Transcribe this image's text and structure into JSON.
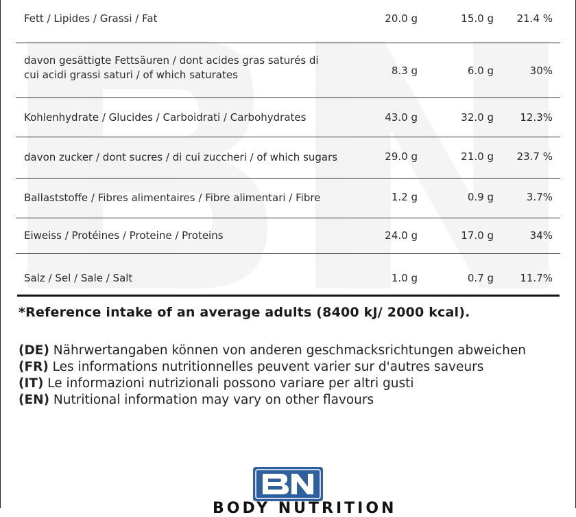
{
  "nutrition_table": {
    "rows": [
      {
        "label": "Fett / Lipides / Grassi / Fat",
        "per100": "20.0 g",
        "perServing": "15.0 g",
        "ri": "21.4 %"
      },
      {
        "label": "davon gesättigte Fettsäuren / dont acides gras saturés di cui acidi grassi saturi / of which saturates",
        "per100": "8.3 g",
        "perServing": "6.0 g",
        "ri": "30%"
      },
      {
        "label": "Kohlenhydrate / Glucides / Carboidrati / Carbohydrates",
        "per100": "43.0 g",
        "perServing": "32.0 g",
        "ri": "12.3%"
      },
      {
        "label": "davon zucker / dont sucres / di cui zuccheri / of which sugars",
        "per100": "29.0 g",
        "perServing": "21.0 g",
        "ri": "23.7 %"
      },
      {
        "label": "Ballaststoffe / Fibres alimentaires / Fibre alimentari / Fibre",
        "per100": "1.2 g",
        "perServing": "0.9 g",
        "ri": "3.7%"
      },
      {
        "label": "Eiweiss / Protéines / Proteine / Proteins",
        "per100": "24.0 g",
        "perServing": "17.0 g",
        "ri": "34%"
      },
      {
        "label": "Salz / Sel / Sale / Salt",
        "per100": "1.0 g",
        "perServing": "0.7 g",
        "ri": "11.7%"
      }
    ]
  },
  "reference_note": "*Reference intake of an average adults (8400 kJ/ 2000 kcal).",
  "notes": [
    {
      "code": "(DE)",
      "text": " Nährwertangaben können von anderen geschmacksrichtungen abweichen"
    },
    {
      "code": "(FR)",
      "text": " Les informations nutritionnelles peuvent varier sur d'autres saveurs"
    },
    {
      "code": "(IT)",
      "text": " Le informazioni nutrizionali possono variare per altri gusti"
    },
    {
      "code": "(EN)",
      "text": " Nutritional information may vary on other flavours"
    }
  ],
  "logo": {
    "letters": "BN",
    "brand_text": "BODY NUTRITION",
    "color": "#2f5f9e"
  },
  "watermark_letters": "BN"
}
